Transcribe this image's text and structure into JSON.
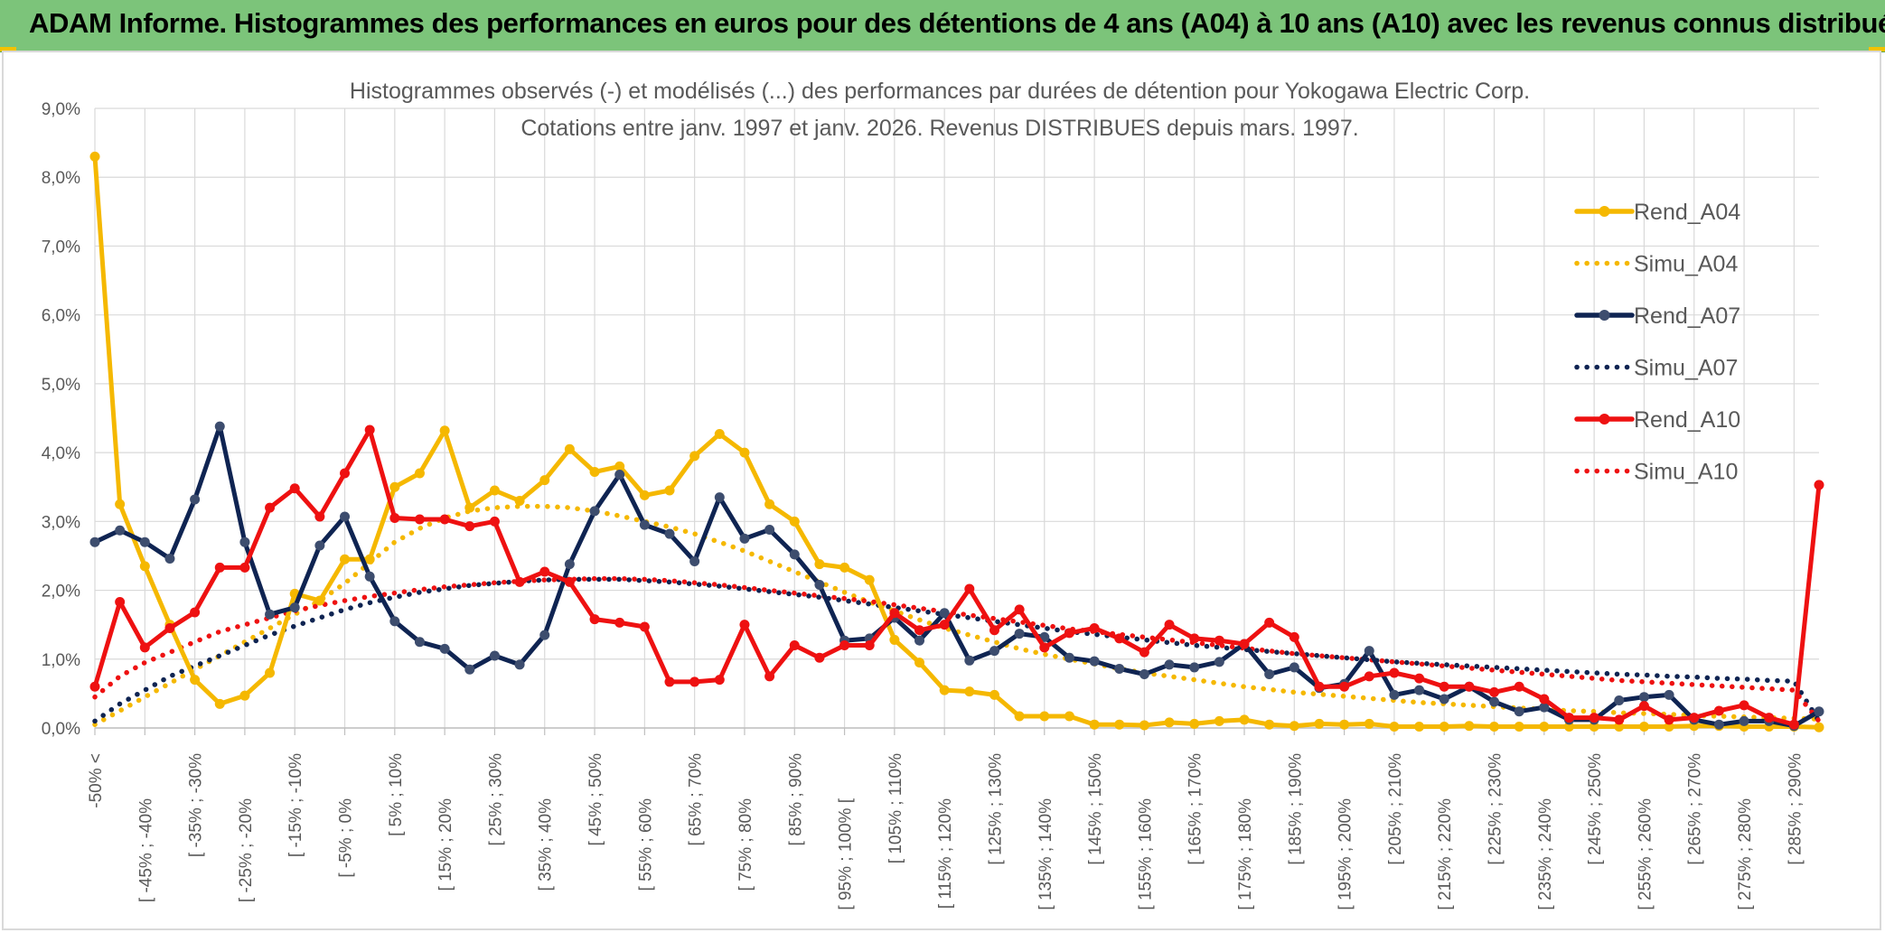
{
  "banner": {
    "title": "ADAM Informe. Histogrammes des performances en euros pour des détentions de 4 ans (A04) à 10 ans (A10) avec les revenus connus distribués"
  },
  "colors": {
    "banner": "#7cc47a",
    "A04": "#f5b800",
    "A07": "#0f2452",
    "A10": "#ee1111",
    "grid": "#d9d9d9",
    "text": "#595959"
  },
  "chart_data": {
    "type": "line",
    "title_line1": "Histogrammes observés (-) et modélisés (...) des performances par durées de détention pour Yokogawa Electric Corp.",
    "title_line2": "Cotations entre janv. 1997 et janv. 2026. Revenus DISTRIBUES depuis mars. 1997.",
    "ylim": [
      0,
      9
    ],
    "y_unit": "%",
    "yticks": [
      "0,0%",
      "1,0%",
      "2,0%",
      "3,0%",
      "4,0%",
      "5,0%",
      "6,0%",
      "7,0%",
      "8,0%",
      "9,0%"
    ],
    "x_tick_labels": [
      "-50% <",
      "[ -45% ; -40%",
      "[ -35% ; -30%",
      "[ -25% ; -20%",
      "[ -15% ; -10%",
      "[ -5% ; 0%",
      "[ 5% ; 10%",
      "[ 15% ; 20%",
      "[ 25% ; 30%",
      "[ 35% ; 40%",
      "[ 45% ; 50%",
      "[ 55% ; 60%",
      "[ 65% ; 70%",
      "[ 75% ; 80%",
      "[ 85% ; 90%",
      "[ 95% ; 100% [",
      "[ 105% ; 110%",
      "[ 115% ; 120%",
      "[ 125% ; 130%",
      "[ 135% ; 140%",
      "[ 145% ; 150%",
      "[ 155% ; 160%",
      "[ 165% ; 170%",
      "[ 175% ; 180%",
      "[ 185% ; 190%",
      "[ 195% ; 200%",
      "[ 205% ; 210%",
      "[ 215% ; 220%",
      "[ 225% ; 230%",
      "[ 235% ; 240%",
      "[ 245% ; 250%",
      "[ 255% ; 260%",
      "[ 265% ; 270%",
      "[ 275% ; 280%",
      "[ 285% ; 290%"
    ],
    "grid": true,
    "legend_position": "right",
    "series": [
      {
        "name": "Rend_A04",
        "style": "solid",
        "color": "#f5b800",
        "values": [
          8.3,
          3.25,
          2.35,
          1.5,
          0.7,
          0.35,
          0.47,
          0.8,
          1.95,
          1.85,
          2.45,
          2.45,
          3.5,
          3.7,
          4.32,
          3.2,
          3.45,
          3.3,
          3.6,
          4.05,
          3.72,
          3.8,
          3.38,
          3.45,
          3.95,
          4.27,
          4.0,
          3.25,
          3.0,
          2.38,
          2.33,
          2.15,
          1.28,
          0.95,
          0.55,
          0.53,
          0.48,
          0.17,
          0.17,
          0.17,
          0.05,
          0.05,
          0.04,
          0.08,
          0.06,
          0.1,
          0.12,
          0.05,
          0.03,
          0.06,
          0.05,
          0.06,
          0.02,
          0.02,
          0.02,
          0.03,
          0.02,
          0.02,
          0.02,
          0.02,
          0.02,
          0.02,
          0.02,
          0.02,
          0.03,
          0.03,
          0.02,
          0.02,
          0.02,
          0.01
        ]
      },
      {
        "name": "Simu_A04",
        "style": "dotted",
        "color": "#f5b800",
        "values": [
          0.05,
          0.25,
          0.45,
          0.65,
          0.85,
          1.05,
          1.25,
          1.45,
          1.65,
          1.85,
          2.1,
          2.4,
          2.7,
          2.9,
          3.05,
          3.15,
          3.2,
          3.22,
          3.22,
          3.2,
          3.15,
          3.08,
          3.0,
          2.92,
          2.82,
          2.7,
          2.57,
          2.42,
          2.27,
          2.12,
          1.97,
          1.83,
          1.7,
          1.57,
          1.45,
          1.35,
          1.25,
          1.15,
          1.07,
          1.0,
          0.93,
          0.86,
          0.8,
          0.75,
          0.7,
          0.65,
          0.6,
          0.56,
          0.52,
          0.49,
          0.46,
          0.43,
          0.4,
          0.37,
          0.35,
          0.33,
          0.31,
          0.29,
          0.27,
          0.25,
          0.24,
          0.22,
          0.21,
          0.2,
          0.18,
          0.17,
          0.16,
          0.15,
          0.14,
          0.13
        ]
      },
      {
        "name": "Rend_A07",
        "style": "solid",
        "color": "#0f2452",
        "values": [
          2.7,
          2.87,
          2.7,
          2.46,
          3.32,
          4.38,
          2.7,
          1.65,
          1.75,
          2.65,
          3.07,
          2.2,
          1.55,
          1.25,
          1.15,
          0.85,
          1.05,
          0.92,
          1.35,
          2.38,
          3.15,
          3.68,
          2.95,
          2.82,
          2.42,
          3.35,
          2.75,
          2.88,
          2.52,
          2.08,
          1.27,
          1.3,
          1.6,
          1.27,
          1.67,
          0.98,
          1.12,
          1.37,
          1.32,
          1.02,
          0.97,
          0.86,
          0.78,
          0.92,
          0.88,
          0.96,
          1.22,
          0.78,
          0.88,
          0.58,
          0.64,
          1.12,
          0.48,
          0.55,
          0.42,
          0.6,
          0.38,
          0.24,
          0.3,
          0.12,
          0.12,
          0.4,
          0.45,
          0.48,
          0.12,
          0.05,
          0.1,
          0.1,
          0.03,
          0.24
        ]
      },
      {
        "name": "Simu_A07",
        "style": "dotted",
        "color": "#0f2452",
        "values": [
          0.1,
          0.35,
          0.55,
          0.75,
          0.9,
          1.05,
          1.2,
          1.35,
          1.48,
          1.6,
          1.72,
          1.82,
          1.9,
          1.97,
          2.02,
          2.07,
          2.1,
          2.13,
          2.15,
          2.16,
          2.16,
          2.16,
          2.14,
          2.12,
          2.09,
          2.06,
          2.02,
          1.98,
          1.94,
          1.9,
          1.85,
          1.8,
          1.75,
          1.7,
          1.65,
          1.6,
          1.55,
          1.5,
          1.45,
          1.4,
          1.36,
          1.32,
          1.28,
          1.24,
          1.2,
          1.17,
          1.14,
          1.11,
          1.08,
          1.05,
          1.02,
          0.99,
          0.96,
          0.94,
          0.92,
          0.9,
          0.88,
          0.86,
          0.84,
          0.82,
          0.8,
          0.78,
          0.77,
          0.75,
          0.74,
          0.72,
          0.71,
          0.69,
          0.68,
          0.1
        ]
      },
      {
        "name": "Rend_A10",
        "style": "solid",
        "color": "#ee1111",
        "values": [
          0.6,
          1.83,
          1.17,
          1.45,
          1.68,
          2.33,
          2.33,
          3.2,
          3.48,
          3.07,
          3.7,
          4.33,
          3.05,
          3.03,
          3.03,
          2.93,
          3.0,
          2.12,
          2.27,
          2.12,
          1.58,
          1.53,
          1.47,
          0.67,
          0.67,
          0.7,
          1.5,
          0.75,
          1.2,
          1.02,
          1.2,
          1.2,
          1.67,
          1.42,
          1.5,
          2.02,
          1.42,
          1.72,
          1.17,
          1.38,
          1.45,
          1.3,
          1.1,
          1.5,
          1.3,
          1.27,
          1.22,
          1.53,
          1.32,
          0.6,
          0.6,
          0.75,
          0.8,
          0.72,
          0.6,
          0.6,
          0.52,
          0.6,
          0.42,
          0.15,
          0.15,
          0.12,
          0.32,
          0.12,
          0.15,
          0.25,
          0.33,
          0.15,
          0.05,
          3.53
        ]
      },
      {
        "name": "Simu_A10",
        "style": "dotted",
        "color": "#ee1111",
        "values": [
          0.45,
          0.75,
          0.95,
          1.1,
          1.25,
          1.4,
          1.5,
          1.6,
          1.7,
          1.78,
          1.85,
          1.91,
          1.96,
          2.01,
          2.05,
          2.08,
          2.11,
          2.13,
          2.15,
          2.16,
          2.17,
          2.17,
          2.16,
          2.14,
          2.11,
          2.08,
          2.04,
          2.0,
          1.96,
          1.92,
          1.88,
          1.84,
          1.79,
          1.74,
          1.69,
          1.64,
          1.59,
          1.54,
          1.49,
          1.44,
          1.4,
          1.36,
          1.32,
          1.28,
          1.24,
          1.2,
          1.16,
          1.12,
          1.08,
          1.05,
          1.02,
          0.99,
          0.96,
          0.93,
          0.9,
          0.87,
          0.84,
          0.81,
          0.78,
          0.75,
          0.72,
          0.69,
          0.67,
          0.65,
          0.63,
          0.61,
          0.59,
          0.57,
          0.55,
          0.1
        ]
      }
    ]
  }
}
